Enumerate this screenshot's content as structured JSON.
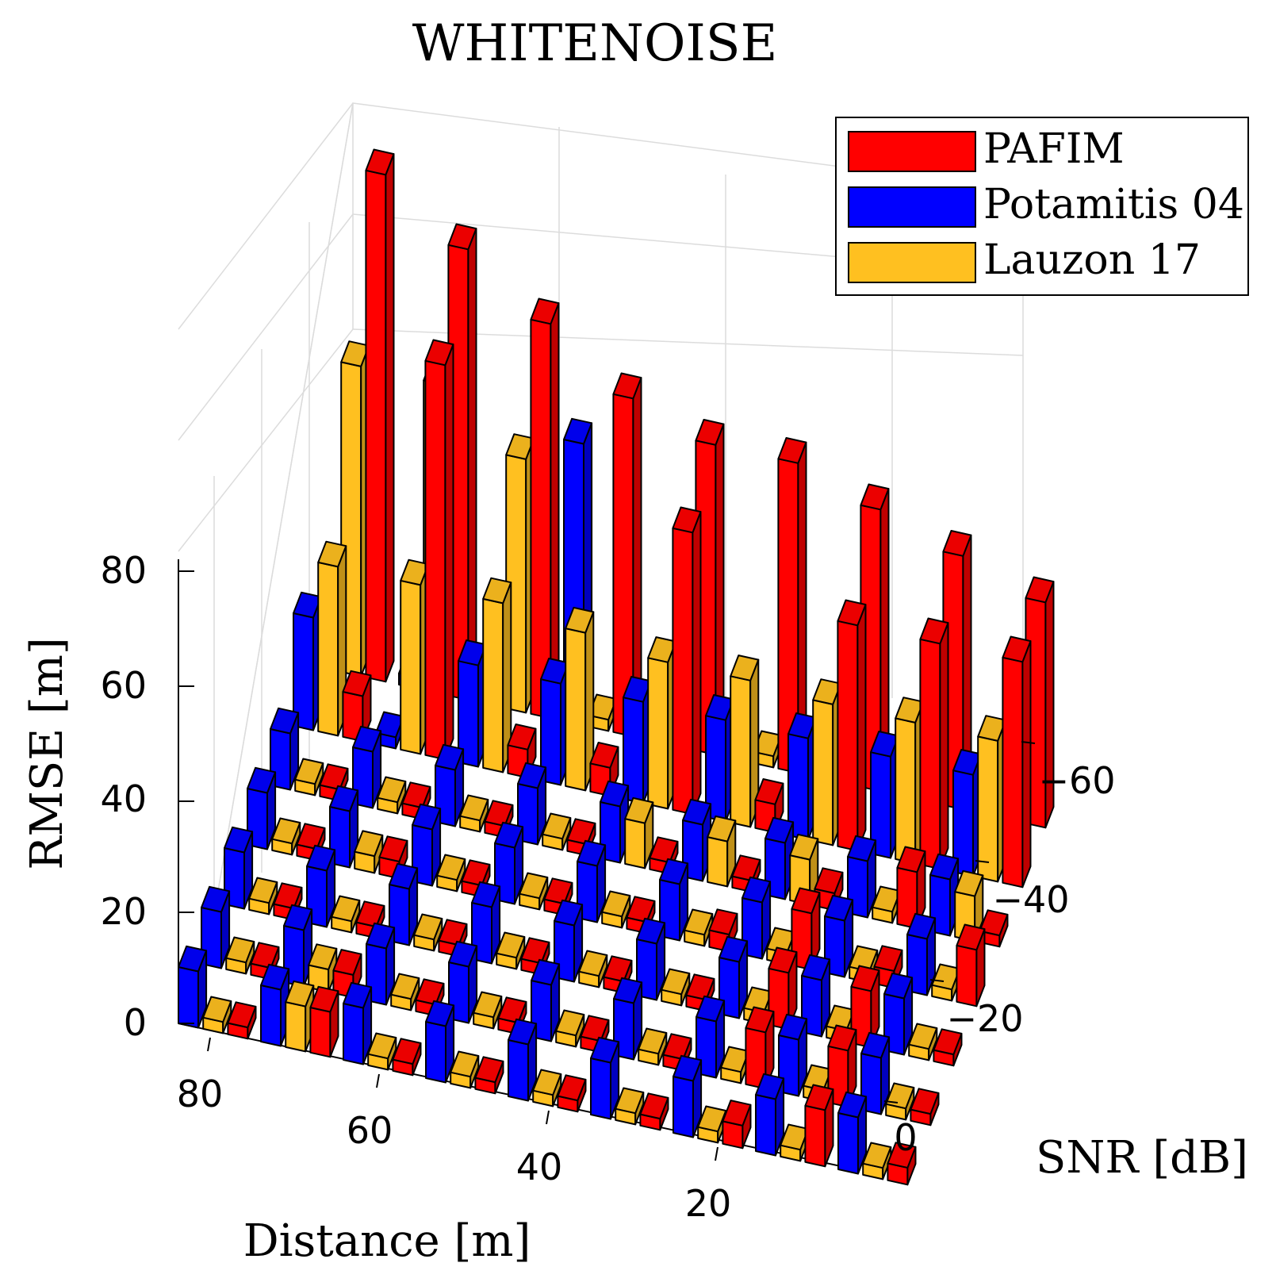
{
  "chart_data": {
    "type": "bar3d",
    "title": "WHITENOISE",
    "xlabel": "Distance [m]",
    "ylabel": "SNR [dB]",
    "zlabel": "RMSE [m]",
    "x_ticks": [
      "80",
      "60",
      "40",
      "20"
    ],
    "y_ticks": [
      "0",
      "−20",
      "−40",
      "−60"
    ],
    "z_ticks": [
      "0",
      "20",
      "40",
      "60",
      "80"
    ],
    "zlim": [
      0,
      105
    ],
    "distances": [
      90,
      80,
      70,
      60,
      50,
      40,
      30,
      20,
      10
    ],
    "snr": [
      0,
      -10,
      -20,
      -30,
      -40,
      -50,
      -60
    ],
    "legend_position": "top-right",
    "series": [
      {
        "name": "PAFIM",
        "color": "#ff0000",
        "values": [
          [
            2,
            8,
            2,
            2,
            2,
            2,
            4,
            10,
            3
          ],
          [
            2,
            4,
            2,
            2,
            2,
            2,
            10,
            10,
            2
          ],
          [
            2,
            2,
            2,
            2,
            2,
            2,
            10,
            10,
            2
          ],
          [
            2,
            3,
            2,
            2,
            2,
            3,
            10,
            3,
            10
          ],
          [
            2,
            2,
            2,
            2,
            2,
            2,
            3,
            10,
            2
          ],
          [
            8,
            70,
            5,
            5,
            50,
            5,
            40,
            40,
            40
          ],
          [
            90,
            80,
            70,
            60,
            55,
            55,
            50,
            45,
            40
          ]
        ]
      },
      {
        "name": "Potamitis 04",
        "color": "#0000ff",
        "values": [
          [
            10,
            10,
            10,
            10,
            10,
            10,
            10,
            10,
            10
          ],
          [
            10,
            10,
            10,
            10,
            10,
            10,
            10,
            10,
            10
          ],
          [
            10,
            10,
            10,
            10,
            10,
            10,
            10,
            10,
            10
          ],
          [
            10,
            10,
            10,
            10,
            10,
            10,
            10,
            10,
            10
          ],
          [
            10,
            10,
            10,
            10,
            10,
            10,
            10,
            10,
            10
          ],
          [
            20,
            2,
            18,
            18,
            18,
            18,
            18,
            18,
            18
          ],
          [
            2,
            2,
            2,
            50,
            2,
            2,
            2,
            2,
            2
          ]
        ]
      },
      {
        "name": "Lauzon 17",
        "color": "#ffc020",
        "values": [
          [
            2,
            8,
            2,
            2,
            2,
            2,
            2,
            2,
            2
          ],
          [
            2,
            4,
            2,
            2,
            2,
            2,
            2,
            2,
            2
          ],
          [
            2,
            2,
            2,
            2,
            2,
            2,
            2,
            2,
            2
          ],
          [
            2,
            3,
            2,
            2,
            2,
            2,
            2,
            2,
            2
          ],
          [
            2,
            2,
            2,
            2,
            8,
            8,
            8,
            2,
            8
          ],
          [
            30,
            30,
            30,
            28,
            26,
            26,
            25,
            25,
            25
          ],
          [
            55,
            55,
            45,
            2,
            2,
            2,
            2,
            2,
            2
          ]
        ]
      }
    ]
  }
}
